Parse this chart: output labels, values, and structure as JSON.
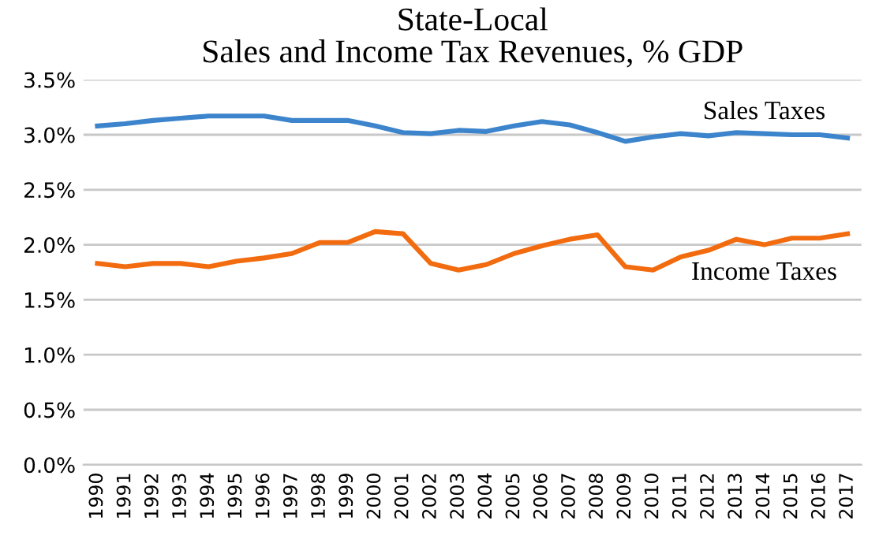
{
  "chart_data": {
    "type": "line",
    "title": "State-Local\nSales and Income Tax Revenues, % GDP",
    "categories": [
      "1990",
      "1991",
      "1992",
      "1993",
      "1994",
      "1995",
      "1996",
      "1997",
      "1998",
      "1999",
      "2000",
      "2001",
      "2002",
      "2003",
      "2004",
      "2005",
      "2006",
      "2007",
      "2008",
      "2009",
      "2010",
      "2011",
      "2012",
      "2013",
      "2014",
      "2015",
      "2016",
      "2017"
    ],
    "series": [
      {
        "name": "Sales Taxes",
        "color": "#3c84cc",
        "values": [
          3.08,
          3.1,
          3.13,
          3.15,
          3.17,
          3.17,
          3.17,
          3.13,
          3.13,
          3.13,
          3.08,
          3.02,
          3.01,
          3.04,
          3.03,
          3.08,
          3.12,
          3.09,
          3.02,
          2.94,
          2.98,
          3.01,
          2.99,
          3.02,
          3.01,
          3.0,
          3.0,
          2.97
        ]
      },
      {
        "name": "Income Taxes",
        "color": "#f26b0f",
        "values": [
          1.83,
          1.8,
          1.83,
          1.83,
          1.8,
          1.85,
          1.88,
          1.92,
          2.02,
          2.02,
          2.12,
          2.1,
          1.83,
          1.77,
          1.82,
          1.92,
          1.99,
          2.05,
          2.09,
          1.8,
          1.77,
          1.89,
          1.95,
          2.05,
          2.0,
          2.06,
          2.06,
          2.1
        ]
      }
    ],
    "ylim": [
      0,
      3.5
    ],
    "yticks": [
      {
        "value": 0,
        "label": "0.0%"
      },
      {
        "value": 0.5,
        "label": "0.5%"
      },
      {
        "value": 1.0,
        "label": "1.0%"
      },
      {
        "value": 1.5,
        "label": "1.5%"
      },
      {
        "value": 2.0,
        "label": "2.0%"
      },
      {
        "value": 2.5,
        "label": "2.5%"
      },
      {
        "value": 3.0,
        "label": "3.0%"
      },
      {
        "value": 3.5,
        "label": "3.5%"
      }
    ],
    "grid": "y",
    "legend": false,
    "marker": "none",
    "line_style": "solid"
  }
}
